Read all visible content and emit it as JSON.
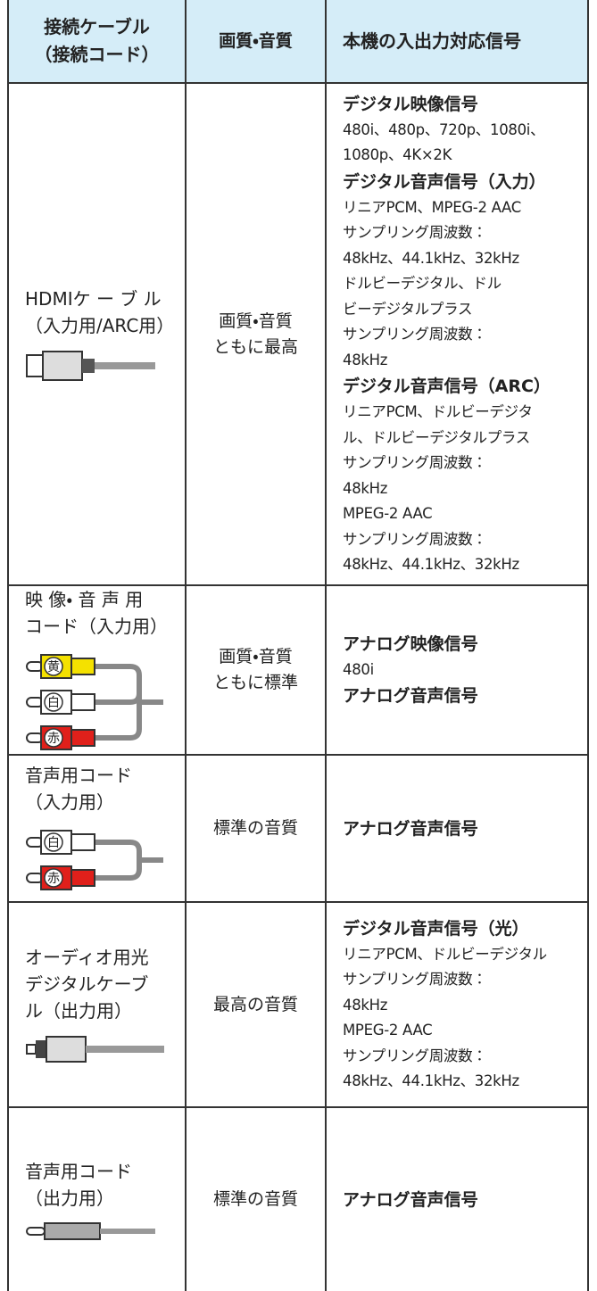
{
  "header": [
    [
      "接続ケーブル",
      "（接続コード）"
    ],
    [
      "画質・音質"
    ],
    [
      "本機の入出力対応信号"
    ]
  ],
  "rows": [
    {
      "cable": [
        "HDMIケ ー ブ ル",
        "（入力用/ARC用）"
      ],
      "quality": [
        "画質・音質",
        "ともに最高"
      ],
      "signals": [
        {
          "heading": "デジタル映像信号",
          "lines": [
            "480i、480p、720p、1080i、",
            "1080p、4K×2K"
          ]
        },
        {
          "heading": "デジタル音声信号（入力）",
          "lines": [
            "リニアPCM、MPEG-2 AAC",
            "サンプリング周波数：",
            "48kHz、44.1kHz、32kHz",
            "ドルビーデジタル、ドル",
            "ビーデジタルプラス",
            "サンプリング周波数：",
            "48kHz"
          ]
        },
        {
          "heading": "デジタル音声信号（ARC）",
          "lines": [
            "リニアPCM、ドルビーデジタ",
            "ル、ドルビーデジタルプラス",
            "サンプリング周波数：",
            "48kHz",
            "MPEG-2 AAC",
            "サンプリング周波数：",
            "48kHz、44.1kHz、32kHz"
          ]
        }
      ]
    },
    {
      "cable": [
        "映 像・ 音 声 用",
        "コード（入力用）"
      ],
      "plugs": [
        "黄",
        "白",
        "赤"
      ],
      "quality": [
        "画質・音質",
        "ともに標準"
      ],
      "signals": [
        {
          "heading": "アナログ映像信号",
          "lines": [
            "480i"
          ]
        },
        {
          "heading": "アナログ音声信号",
          "lines": []
        }
      ]
    },
    {
      "cable": [
        "音声用コード",
        "（入力用）"
      ],
      "plugs": [
        "白",
        "赤"
      ],
      "quality": [
        "標準の音質"
      ],
      "signals": [
        {
          "heading": "アナログ音声信号",
          "lines": []
        }
      ]
    },
    {
      "cable": [
        "オーディオ用光",
        "デジタルケーブ",
        "ル（出力用）"
      ],
      "quality": [
        "最高の音質"
      ],
      "signals": [
        {
          "heading": "デジタル音声信号（光）",
          "lines": [
            "リニアPCM、ドルビーデジタル",
            "サンプリング周波数：",
            "48kHz",
            "MPEG-2 AAC",
            "サンプリング周波数：",
            "48kHz、44.1kHz、32kHz"
          ]
        }
      ]
    },
    {
      "cable": [
        "音声用コード",
        "（出力用）"
      ],
      "quality": [
        "標準の音質"
      ],
      "signals": [
        {
          "heading": "アナログ音声信号",
          "lines": []
        }
      ]
    }
  ]
}
